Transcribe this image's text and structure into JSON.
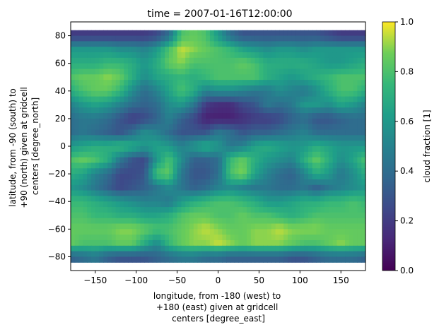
{
  "chart_data": {
    "type": "heatmap",
    "title": "time = 2007-01-16T12:00:00",
    "xlabel_lines": [
      "longitude, from -180 (west) to",
      "+180 (east) given at gridcell",
      "centers [degree_east]"
    ],
    "ylabel_lines": [
      "latitude, from -90 (south) to",
      "+90 (north) given at gridcell",
      "centers [degree_north]"
    ],
    "colorbar_label": "cloud fraction [1]",
    "colormap": "viridis",
    "xlim": [
      -180,
      180
    ],
    "ylim": [
      -90,
      90
    ],
    "data_lat_range": [
      -84,
      84
    ],
    "clim": [
      0.0,
      1.0
    ],
    "xticks": [
      -150,
      -100,
      -50,
      0,
      50,
      100,
      150
    ],
    "xtick_labels": [
      "−150",
      "−100",
      "−50",
      "0",
      "50",
      "100",
      "150"
    ],
    "yticks": [
      -80,
      -60,
      -40,
      -20,
      0,
      20,
      40,
      60,
      80
    ],
    "ytick_labels": [
      "−80",
      "−60",
      "−40",
      "−20",
      "0",
      "20",
      "40",
      "60",
      "80"
    ],
    "cbar_ticks": [
      0.0,
      0.2,
      0.4,
      0.6,
      0.8,
      1.0
    ],
    "cbar_tick_labels": [
      "0.0",
      "0.2",
      "0.4",
      "0.6",
      "0.8",
      "1.0"
    ],
    "latitudes": [
      80,
      70,
      60,
      50,
      40,
      30,
      20,
      10,
      0,
      -10,
      -20,
      -30,
      -40,
      -50,
      -60,
      -70,
      -80
    ],
    "longitudes": [
      -180,
      -165,
      -150,
      -135,
      -120,
      -105,
      -90,
      -75,
      -60,
      -45,
      -30,
      -15,
      0,
      15,
      30,
      45,
      60,
      75,
      90,
      105,
      120,
      135,
      150,
      165,
      180
    ],
    "values": [
      [
        0.2,
        0.2,
        0.2,
        0.2,
        0.2,
        0.2,
        0.2,
        0.25,
        0.4,
        0.8,
        0.85,
        0.8,
        0.6,
        0.4,
        0.3,
        0.3,
        0.3,
        0.3,
        0.3,
        0.3,
        0.3,
        0.25,
        0.2,
        0.2,
        0.2
      ],
      [
        0.6,
        0.6,
        0.6,
        0.6,
        0.55,
        0.55,
        0.5,
        0.6,
        0.8,
        0.95,
        0.9,
        0.85,
        0.8,
        0.75,
        0.65,
        0.6,
        0.55,
        0.6,
        0.6,
        0.55,
        0.6,
        0.6,
        0.6,
        0.6,
        0.6
      ],
      [
        0.7,
        0.7,
        0.7,
        0.75,
        0.75,
        0.7,
        0.6,
        0.7,
        0.85,
        0.9,
        0.8,
        0.8,
        0.8,
        0.8,
        0.85,
        0.8,
        0.7,
        0.7,
        0.7,
        0.7,
        0.65,
        0.6,
        0.6,
        0.65,
        0.7
      ],
      [
        0.8,
        0.85,
        0.85,
        0.9,
        0.85,
        0.7,
        0.55,
        0.65,
        0.7,
        0.75,
        0.7,
        0.75,
        0.8,
        0.8,
        0.8,
        0.8,
        0.7,
        0.65,
        0.6,
        0.65,
        0.7,
        0.75,
        0.8,
        0.8,
        0.8
      ],
      [
        0.7,
        0.8,
        0.85,
        0.85,
        0.75,
        0.55,
        0.4,
        0.5,
        0.65,
        0.8,
        0.7,
        0.5,
        0.55,
        0.55,
        0.5,
        0.45,
        0.45,
        0.55,
        0.5,
        0.45,
        0.55,
        0.7,
        0.8,
        0.8,
        0.7
      ],
      [
        0.5,
        0.6,
        0.65,
        0.6,
        0.5,
        0.4,
        0.35,
        0.4,
        0.55,
        0.6,
        0.45,
        0.2,
        0.15,
        0.15,
        0.25,
        0.3,
        0.45,
        0.4,
        0.45,
        0.6,
        0.6,
        0.55,
        0.65,
        0.6,
        0.5
      ],
      [
        0.4,
        0.45,
        0.45,
        0.4,
        0.3,
        0.2,
        0.25,
        0.35,
        0.5,
        0.35,
        0.25,
        0.1,
        0.1,
        0.1,
        0.15,
        0.2,
        0.2,
        0.25,
        0.35,
        0.4,
        0.3,
        0.3,
        0.35,
        0.4,
        0.4
      ],
      [
        0.4,
        0.45,
        0.4,
        0.35,
        0.3,
        0.4,
        0.55,
        0.5,
        0.4,
        0.3,
        0.3,
        0.3,
        0.45,
        0.4,
        0.3,
        0.35,
        0.35,
        0.4,
        0.45,
        0.5,
        0.4,
        0.4,
        0.4,
        0.4,
        0.4
      ],
      [
        0.6,
        0.65,
        0.7,
        0.7,
        0.75,
        0.7,
        0.6,
        0.65,
        0.6,
        0.5,
        0.6,
        0.7,
        0.6,
        0.45,
        0.5,
        0.65,
        0.7,
        0.65,
        0.6,
        0.6,
        0.7,
        0.65,
        0.6,
        0.6,
        0.6
      ],
      [
        0.8,
        0.85,
        0.8,
        0.7,
        0.45,
        0.3,
        0.25,
        0.6,
        0.8,
        0.55,
        0.35,
        0.35,
        0.4,
        0.75,
        0.85,
        0.7,
        0.6,
        0.55,
        0.5,
        0.7,
        0.85,
        0.7,
        0.55,
        0.65,
        0.8
      ],
      [
        0.7,
        0.65,
        0.5,
        0.4,
        0.25,
        0.25,
        0.3,
        0.8,
        0.85,
        0.45,
        0.3,
        0.3,
        0.4,
        0.8,
        0.9,
        0.65,
        0.5,
        0.4,
        0.35,
        0.5,
        0.7,
        0.6,
        0.45,
        0.55,
        0.7
      ],
      [
        0.6,
        0.55,
        0.45,
        0.35,
        0.25,
        0.3,
        0.35,
        0.45,
        0.55,
        0.45,
        0.35,
        0.4,
        0.5,
        0.55,
        0.5,
        0.45,
        0.45,
        0.4,
        0.4,
        0.45,
        0.35,
        0.45,
        0.5,
        0.55,
        0.6
      ],
      [
        0.75,
        0.75,
        0.7,
        0.65,
        0.6,
        0.55,
        0.5,
        0.5,
        0.45,
        0.6,
        0.7,
        0.75,
        0.8,
        0.8,
        0.75,
        0.7,
        0.6,
        0.6,
        0.65,
        0.7,
        0.7,
        0.75,
        0.75,
        0.8,
        0.75
      ],
      [
        0.8,
        0.8,
        0.75,
        0.75,
        0.7,
        0.7,
        0.65,
        0.65,
        0.7,
        0.8,
        0.85,
        0.85,
        0.8,
        0.8,
        0.85,
        0.8,
        0.8,
        0.75,
        0.7,
        0.75,
        0.8,
        0.8,
        0.8,
        0.8,
        0.8
      ],
      [
        0.85,
        0.85,
        0.85,
        0.85,
        0.9,
        0.9,
        0.85,
        0.8,
        0.8,
        0.85,
        0.9,
        0.95,
        0.9,
        0.85,
        0.85,
        0.9,
        0.9,
        0.95,
        0.9,
        0.9,
        0.9,
        0.85,
        0.85,
        0.85,
        0.85
      ],
      [
        0.85,
        0.8,
        0.8,
        0.8,
        0.85,
        0.85,
        0.7,
        0.55,
        0.75,
        0.85,
        0.9,
        0.9,
        0.95,
        0.9,
        0.85,
        0.9,
        0.9,
        0.9,
        0.85,
        0.8,
        0.8,
        0.85,
        0.9,
        0.85,
        0.85
      ],
      [
        0.35,
        0.4,
        0.45,
        0.35,
        0.3,
        0.3,
        0.3,
        0.35,
        0.4,
        0.45,
        0.45,
        0.4,
        0.4,
        0.35,
        0.35,
        0.35,
        0.35,
        0.35,
        0.3,
        0.3,
        0.35,
        0.4,
        0.4,
        0.4,
        0.35
      ]
    ]
  }
}
